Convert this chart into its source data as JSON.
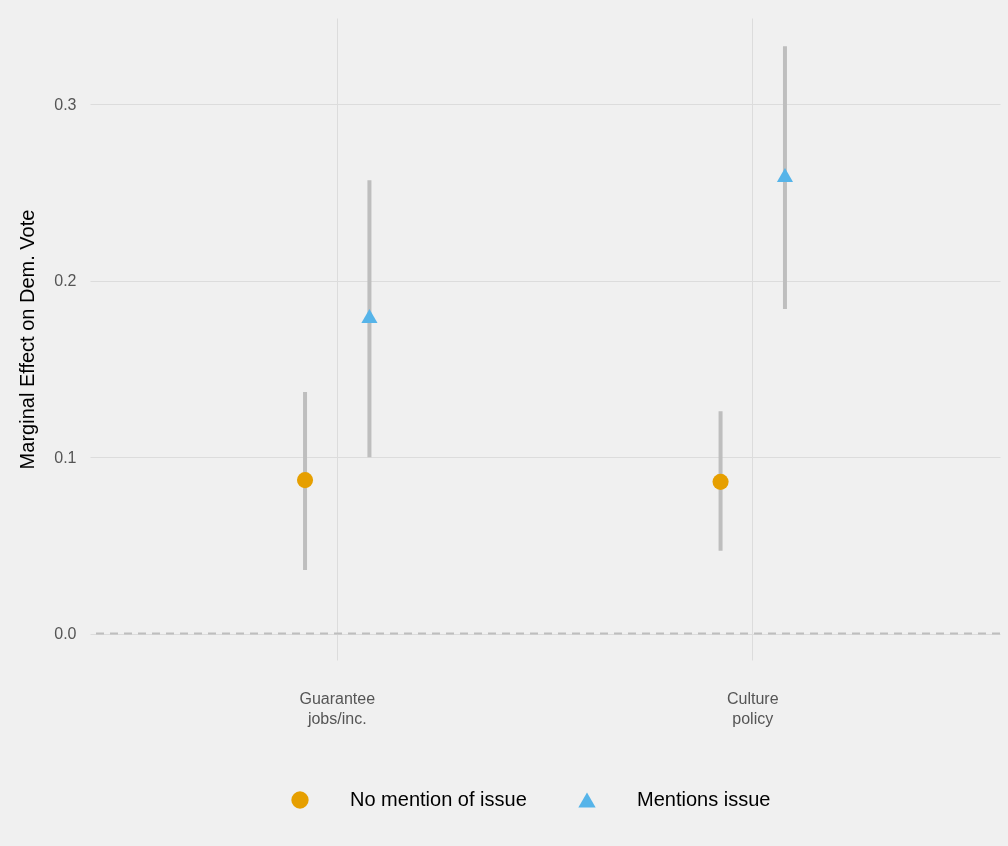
{
  "chart_data": {
    "type": "scatter",
    "ylabel": "Marginal Effect on Dem. Vote",
    "categories": [
      "Guarantee\njobs/inc.",
      "Culture\npolicy"
    ],
    "series": [
      {
        "name": "No mention of issue",
        "color": "#e69f00",
        "marker": "circle",
        "values": [
          0.087,
          0.086
        ],
        "errors": [
          [
            0.036,
            0.137
          ],
          [
            0.047,
            0.126
          ]
        ]
      },
      {
        "name": "Mentions issue",
        "color": "#56b4e9",
        "marker": "triangle",
        "values": [
          0.18,
          0.26
        ],
        "errors": [
          [
            0.1,
            0.257
          ],
          [
            0.184,
            0.333
          ]
        ]
      }
    ],
    "ylim": [
      -0.015,
      0.349
    ],
    "yticks": [
      {
        "value": 0,
        "label": "0.0"
      },
      {
        "value": 0.1,
        "label": "0.1"
      },
      {
        "value": 0.2,
        "label": "0.2"
      },
      {
        "value": 0.3,
        "label": "0.3"
      }
    ],
    "ref_lines": [
      {
        "axis": "y",
        "value": 0,
        "color": "#bebebe",
        "line_style": "dashed"
      }
    ],
    "grid": true,
    "legend": "bottom"
  }
}
